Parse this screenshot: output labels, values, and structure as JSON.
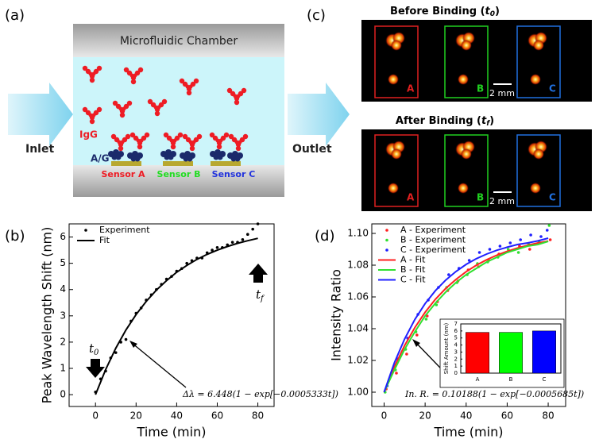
{
  "panel_labels": [
    "(a)",
    "(b)",
    "(c)",
    "(d)"
  ],
  "diagram": {
    "chamber": "Microfluidic Chamber",
    "inlet": "Inlet",
    "outlet": "Outlet",
    "igg": "IgG",
    "ag": "A/G",
    "sensors": [
      "Sensor A",
      "Sensor B",
      "Sensor C"
    ]
  },
  "images": {
    "before_title": [
      "Before Binding (",
      "t",
      "0",
      ")"
    ],
    "after_title": [
      "After Binding (",
      "t",
      "f",
      ")"
    ],
    "sensor_labels": [
      "A",
      "B",
      "C"
    ],
    "scale_bar": "2 mm"
  },
  "chart_data": [
    {
      "type": "scatter",
      "xlabel": "Time (min)",
      "ylabel": "Peak Wavelength Shift (nm)",
      "xlim": [
        -13,
        88
      ],
      "ylim": [
        -0.45,
        6.5
      ],
      "xticks": [
        0,
        20,
        40,
        60,
        80
      ],
      "yticks": [
        0,
        1,
        2,
        3,
        4,
        5,
        6
      ],
      "legend": "upper left",
      "annotations": {
        "t0": [
          "t",
          "0"
        ],
        "tf": [
          "t",
          "f"
        ],
        "equation": "Δλ = 6.448(1 − exp[−0.0005333t])"
      },
      "series": [
        {
          "name": "Experiment",
          "style": "points",
          "color": "#000000",
          "x": [
            0,
            2.5,
            5,
            7.5,
            10,
            12.5,
            15,
            17.5,
            20,
            22.5,
            25,
            27.5,
            30,
            32.5,
            35,
            37.5,
            40,
            42.5,
            45,
            47.5,
            50,
            52.5,
            55,
            57.5,
            60,
            62.5,
            65,
            67.5,
            70,
            72.5,
            75,
            77.5,
            80
          ],
          "values": [
            0.1,
            0.6,
            0.9,
            1.4,
            1.6,
            2.0,
            2.1,
            2.8,
            3.1,
            3.3,
            3.6,
            3.8,
            4.0,
            4.2,
            4.4,
            4.5,
            4.7,
            4.8,
            5.0,
            5.1,
            5.2,
            5.2,
            5.4,
            5.5,
            5.6,
            5.6,
            5.7,
            5.8,
            5.8,
            5.9,
            6.1,
            6.3,
            6.5
          ]
        },
        {
          "name": "Fit",
          "style": "line",
          "color": "#000000",
          "x": [
            0,
            5,
            10,
            15,
            20,
            25,
            30,
            35,
            40,
            45,
            50,
            55,
            60,
            65,
            70,
            75,
            80
          ],
          "values": [
            0,
            0.954,
            1.77,
            2.46,
            3.05,
            3.55,
            3.98,
            4.34,
            4.66,
            4.92,
            5.15,
            5.34,
            5.5,
            5.64,
            5.76,
            5.86,
            5.95
          ]
        }
      ]
    },
    {
      "type": "scatter",
      "xlabel": "Time (min)",
      "ylabel": "Intensity Ratio",
      "xlim": [
        -6,
        88.5
      ],
      "ylim": [
        0.991,
        1.106
      ],
      "xticks": [
        0,
        20,
        40,
        60,
        80
      ],
      "yticks": [
        {
          "value": 1,
          "label": "1.00"
        },
        {
          "value": 1.02,
          "label": "1.02"
        },
        {
          "value": 1.04,
          "label": "1.04"
        },
        {
          "value": 1.06,
          "label": "1.06"
        },
        {
          "value": 1.08,
          "label": "1.08"
        },
        {
          "value": 1.1,
          "label": "1.10"
        }
      ],
      "legend": "upper left",
      "annotations": {
        "equation": "In. R. = 0.10188(1 − exp[−0.0005685t])"
      },
      "series": [
        {
          "name": "A - Experiment",
          "style": "points",
          "color": "#ff2020",
          "x": [
            1,
            6,
            11,
            16,
            21,
            26,
            31,
            36,
            41,
            46,
            51,
            56,
            61,
            66,
            71,
            76,
            81
          ],
          "values": [
            1.002,
            1.012,
            1.024,
            1.036,
            1.048,
            1.057,
            1.064,
            1.07,
            1.077,
            1.079,
            1.083,
            1.087,
            1.089,
            1.092,
            1.09,
            1.094,
            1.096
          ]
        },
        {
          "name": "B - Experiment",
          "style": "points",
          "color": "#30e030",
          "x": [
            0.5,
            5.5,
            10.5,
            15.5,
            20.5,
            25.5,
            30.5,
            35.5,
            40.5,
            45.5,
            50.5,
            55.5,
            60.5,
            65.5,
            70.5,
            75.5,
            80.5
          ],
          "values": [
            1,
            1.014,
            1.027,
            1.038,
            1.046,
            1.055,
            1.066,
            1.069,
            1.074,
            1.081,
            1.082,
            1.085,
            1.09,
            1.088,
            1.093,
            1.095,
            1.105
          ]
        },
        {
          "name": "C - Experiment",
          "style": "points",
          "color": "#2020ff",
          "x": [
            1.5,
            6.5,
            11.5,
            16.5,
            21.5,
            26.5,
            31.5,
            36.5,
            41.5,
            46.5,
            51.5,
            56.5,
            61.5,
            66.5,
            71.5,
            76.5,
            79.5
          ],
          "values": [
            1.004,
            1.021,
            1.034,
            1.049,
            1.058,
            1.066,
            1.074,
            1.078,
            1.083,
            1.088,
            1.09,
            1.092,
            1.094,
            1.096,
            1.099,
            1.098,
            1.102
          ]
        },
        {
          "name": "A - Fit",
          "style": "line",
          "color": "#ff2020",
          "x": [
            0,
            5,
            10,
            15,
            20,
            25,
            30,
            35,
            40,
            45,
            50,
            55,
            60,
            65,
            70,
            75,
            80
          ],
          "values": [
            1,
            1.016,
            1.0294,
            1.0407,
            1.0503,
            1.0585,
            1.0653,
            1.071,
            1.0759,
            1.08,
            1.0834,
            1.0863,
            1.0887,
            1.0908,
            1.0925,
            1.094,
            1.0952
          ]
        },
        {
          "name": "B - Fit",
          "style": "line",
          "color": "#30e030",
          "x": [
            0,
            5,
            10,
            15,
            20,
            25,
            30,
            35,
            40,
            45,
            50,
            55,
            60,
            65,
            70,
            75,
            80
          ],
          "values": [
            1,
            1.014,
            1.027,
            1.038,
            1.048,
            1.056,
            1.063,
            1.069,
            1.074,
            1.078,
            1.082,
            1.085,
            1.088,
            1.09,
            1.092,
            1.093,
            1.095
          ]
        },
        {
          "name": "C - Fit",
          "style": "line",
          "color": "#2020ff",
          "x": [
            0,
            5,
            10,
            15,
            20,
            25,
            30,
            35,
            40,
            45,
            50,
            55,
            60,
            65,
            70,
            75,
            80
          ],
          "values": [
            1,
            1.0185,
            1.0335,
            1.0458,
            1.0558,
            1.0639,
            1.0706,
            1.076,
            1.0805,
            1.0841,
            1.087,
            1.0894,
            1.0913,
            1.093,
            1.094,
            1.0953,
            1.097
          ]
        }
      ]
    },
    {
      "type": "bar",
      "ylabel": "Shift Amount (nm)",
      "categories": [
        "A",
        "B",
        "C"
      ],
      "values": [
        5.8,
        5.8,
        6.0
      ],
      "colors": [
        "#ff0000",
        "#00ff00",
        "#0000ff"
      ],
      "ylim": [
        0,
        7
      ],
      "yticks": [
        0,
        1,
        2,
        3,
        4,
        5,
        6,
        7
      ]
    }
  ]
}
